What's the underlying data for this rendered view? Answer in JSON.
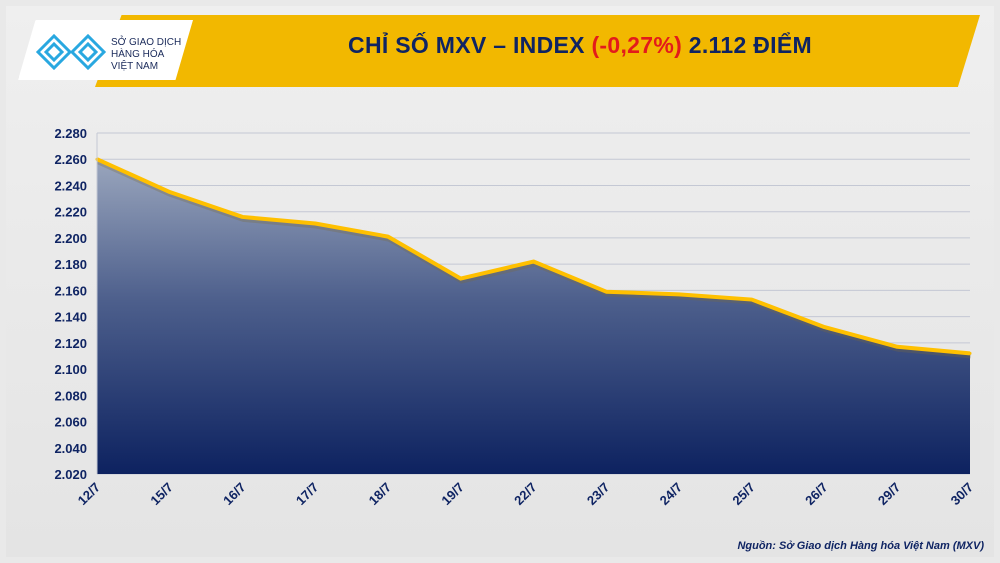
{
  "logo": {
    "lines": [
      "SỞ GIAO DỊCH",
      "HÀNG HÓA",
      "VIỆT NAM"
    ]
  },
  "header": {
    "title_prefix": "CHỈ SỐ MXV – INDEX ",
    "change": "(-0,27%)",
    "title_suffix": " 2.112 ĐIỂM"
  },
  "source": "Nguồn: Sở Giao dịch Hàng hóa Việt Nam (MXV)",
  "colors": {
    "banner": "#f2b800",
    "line": "#ffc000",
    "area_top": "#9aa6bd",
    "area_bottom": "#0d2260",
    "negative": "#e31b1b"
  },
  "chart_data": {
    "type": "area",
    "categories": [
      "12/7",
      "15/7",
      "16/7",
      "17/7",
      "18/7",
      "19/7",
      "22/7",
      "23/7",
      "24/7",
      "25/7",
      "26/7",
      "29/7",
      "30/7"
    ],
    "values": [
      2.26,
      2.235,
      2.216,
      2.211,
      2.201,
      2.169,
      2.182,
      2.159,
      2.157,
      2.153,
      2.132,
      2.117,
      2.112
    ],
    "ylim": [
      2.02,
      2.28
    ],
    "yticks": [
      "2.020",
      "2.040",
      "2.060",
      "2.080",
      "2.100",
      "2.120",
      "2.140",
      "2.160",
      "2.180",
      "2.200",
      "2.220",
      "2.240",
      "2.260",
      "2.280"
    ],
    "grid": true
  }
}
